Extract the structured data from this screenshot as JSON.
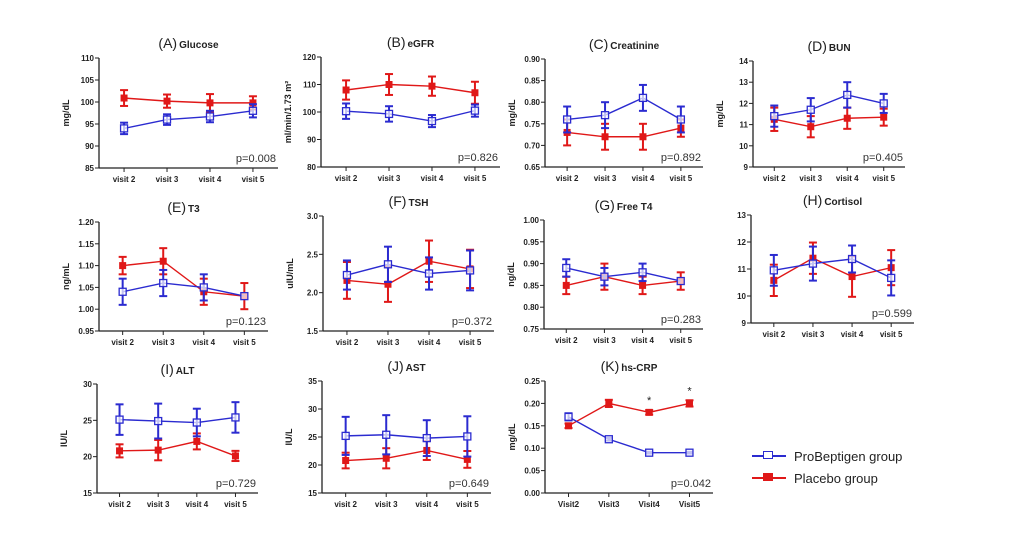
{
  "colors": {
    "probeptigen": "#2b2bd0",
    "placebo": "#e01818",
    "axis": "#222222"
  },
  "legend": [
    {
      "label": "ProBeptigen group",
      "series": "probeptigen",
      "marker": "open-square"
    },
    {
      "label": "Placebo group",
      "series": "placebo",
      "marker": "filled-square"
    }
  ],
  "chart_data": [
    {
      "id": "A",
      "type": "line",
      "letter": "(A)",
      "title": "Glucose",
      "ylabel": "mg/dL",
      "ylim": [
        85,
        110
      ],
      "yticks": [
        85,
        90,
        95,
        100,
        105,
        110
      ],
      "yticklabels": [
        "85",
        "90",
        "95",
        "100",
        "105",
        "110"
      ],
      "categories": [
        "visit 2",
        "visit 3",
        "visit 4",
        "visit 5"
      ],
      "pvalue": "p=0.008",
      "series": [
        {
          "name": "ProBeptigen group",
          "key": "probeptigen",
          "values": [
            94,
            96,
            96.7,
            98
          ],
          "err": [
            1.3,
            1.2,
            1.3,
            1.5
          ]
        },
        {
          "name": "Placebo group",
          "key": "placebo",
          "values": [
            100.9,
            100.2,
            99.8,
            99.8
          ],
          "err": [
            1.8,
            1.5,
            2,
            1.5
          ]
        }
      ]
    },
    {
      "id": "B",
      "type": "line",
      "letter": "(B)",
      "title": "eGFR",
      "ylabel": "ml/min/1.73 m²",
      "ylim": [
        80,
        120
      ],
      "yticks": [
        80,
        90,
        100,
        110,
        120
      ],
      "yticklabels": [
        "80",
        "90",
        "100",
        "110",
        "120"
      ],
      "categories": [
        "visit 2",
        "visit 3",
        "visit 4",
        "visit 5"
      ],
      "pvalue": "p=0.826",
      "series": [
        {
          "name": "ProBeptigen group",
          "key": "probeptigen",
          "values": [
            100.3,
            99.3,
            96.7,
            100.5
          ],
          "err": [
            2.8,
            2.8,
            2.2,
            2.2
          ]
        },
        {
          "name": "Placebo group",
          "key": "placebo",
          "values": [
            108,
            110,
            109.4,
            107
          ],
          "err": [
            3.5,
            3.8,
            3.5,
            4
          ]
        }
      ]
    },
    {
      "id": "C",
      "type": "line",
      "letter": "(C)",
      "title": "Creatinine",
      "ylabel": "mg/dL",
      "ylim": [
        0.65,
        0.9
      ],
      "yticks": [
        0.65,
        0.7,
        0.75,
        0.8,
        0.85,
        0.9
      ],
      "yticklabels": [
        "0.65",
        "0.70",
        "0.75",
        "0.80",
        "0.85",
        "0.90"
      ],
      "categories": [
        "visit 2",
        "visit 3",
        "visit 4",
        "visit 5"
      ],
      "pvalue": "p=0.892",
      "series": [
        {
          "name": "ProBeptigen group",
          "key": "probeptigen",
          "values": [
            0.76,
            0.77,
            0.81,
            0.76
          ],
          "err": [
            0.03,
            0.03,
            0.03,
            0.03
          ]
        },
        {
          "name": "Placebo group",
          "key": "placebo",
          "values": [
            0.73,
            0.72,
            0.72,
            0.74
          ],
          "err": [
            0.03,
            0.03,
            0.03,
            0.02
          ]
        }
      ]
    },
    {
      "id": "D",
      "type": "line",
      "letter": "(D)",
      "title": "BUN",
      "ylabel": "mg/dL",
      "ylim": [
        9,
        14
      ],
      "yticks": [
        9,
        10,
        11,
        12,
        13,
        14
      ],
      "yticklabels": [
        "9",
        "10",
        "11",
        "12",
        "13",
        "14"
      ],
      "categories": [
        "visit 2",
        "visit 3",
        "visit 4",
        "visit 5"
      ],
      "pvalue": "p=0.405",
      "series": [
        {
          "name": "ProBeptigen group",
          "key": "probeptigen",
          "values": [
            11.4,
            11.7,
            12.4,
            12
          ],
          "err": [
            0.5,
            0.55,
            0.6,
            0.45
          ]
        },
        {
          "name": "Placebo group",
          "key": "placebo",
          "values": [
            11.25,
            10.9,
            11.3,
            11.35
          ],
          "err": [
            0.55,
            0.5,
            0.5,
            0.4
          ]
        }
      ]
    },
    {
      "id": "E",
      "type": "line",
      "letter": "(E)",
      "title": "T3",
      "ylabel": "ng/mL",
      "ylim": [
        0.95,
        1.2
      ],
      "yticks": [
        0.95,
        1.0,
        1.05,
        1.1,
        1.15,
        1.2
      ],
      "yticklabels": [
        "0.95",
        "1.00",
        "1.05",
        "1.10",
        "1.15",
        "1.20"
      ],
      "categories": [
        "visit 2",
        "visit 3",
        "visit 4",
        "visit 5"
      ],
      "pvalue": "p=0.123",
      "series": [
        {
          "name": "ProBeptigen group",
          "key": "probeptigen",
          "values": [
            1.04,
            1.06,
            1.05,
            1.03
          ],
          "err": [
            0.03,
            0.03,
            0.03,
            0.0
          ]
        },
        {
          "name": "Placebo group",
          "key": "placebo",
          "values": [
            1.1,
            1.11,
            1.04,
            1.03
          ],
          "err": [
            0.02,
            0.03,
            0.03,
            0.03
          ]
        }
      ]
    },
    {
      "id": "F",
      "type": "line",
      "letter": "(F)",
      "title": "TSH",
      "ylabel": "uIU/mL",
      "ylim": [
        1.5,
        3.0
      ],
      "yticks": [
        1.5,
        2.0,
        2.5,
        3.0
      ],
      "yticklabels": [
        "1.5",
        "2.0",
        "2.5",
        "3.0"
      ],
      "categories": [
        "visit 2",
        "visit 3",
        "visit 4",
        "visit 5"
      ],
      "pvalue": "p=0.372",
      "series": [
        {
          "name": "ProBeptigen group",
          "key": "probeptigen",
          "values": [
            2.23,
            2.37,
            2.25,
            2.29
          ],
          "err": [
            0.19,
            0.23,
            0.21,
            0.26
          ]
        },
        {
          "name": "Placebo group",
          "key": "placebo",
          "values": [
            2.16,
            2.11,
            2.41,
            2.31
          ],
          "err": [
            0.24,
            0.23,
            0.27,
            0.25
          ]
        }
      ]
    },
    {
      "id": "G",
      "type": "line",
      "letter": "(G)",
      "title": "Free T4",
      "ylabel": "ng/dL",
      "ylim": [
        0.75,
        1.0
      ],
      "yticks": [
        0.75,
        0.8,
        0.85,
        0.9,
        0.95,
        1.0
      ],
      "yticklabels": [
        "0.75",
        "0.80",
        "0.85",
        "0.90",
        "0.95",
        "1.00"
      ],
      "categories": [
        "visit 2",
        "visit 3",
        "visit 4",
        "visit 5"
      ],
      "pvalue": "p=0.283",
      "series": [
        {
          "name": "ProBeptigen group",
          "key": "probeptigen",
          "values": [
            0.89,
            0.87,
            0.88,
            0.86
          ],
          "err": [
            0.02,
            0.02,
            0.02,
            0.0
          ]
        },
        {
          "name": "Placebo group",
          "key": "placebo",
          "values": [
            0.85,
            0.87,
            0.85,
            0.86
          ],
          "err": [
            0.02,
            0.03,
            0.02,
            0.02
          ]
        }
      ]
    },
    {
      "id": "H",
      "type": "line",
      "letter": "(H)",
      "title": "Cortisol",
      "ylabel": "",
      "ylim": [
        9,
        13
      ],
      "yticks": [
        9,
        10,
        11,
        12,
        13
      ],
      "yticklabels": [
        "9",
        "10",
        "11",
        "12",
        "13"
      ],
      "categories": [
        "visit 2",
        "visit 3",
        "visit 4",
        "visit 5"
      ],
      "pvalue": "p=0.599",
      "series": [
        {
          "name": "ProBeptigen group",
          "key": "probeptigen",
          "values": [
            10.95,
            11.2,
            11.37,
            10.67
          ],
          "err": [
            0.57,
            0.63,
            0.5,
            0.65
          ]
        },
        {
          "name": "Placebo group",
          "key": "placebo",
          "values": [
            10.58,
            11.4,
            10.72,
            11.05
          ],
          "err": [
            0.58,
            0.58,
            0.75,
            0.65
          ]
        }
      ]
    },
    {
      "id": "I",
      "type": "line",
      "letter": "(I)",
      "title": "ALT",
      "ylabel": "IU/L",
      "ylim": [
        15,
        30
      ],
      "yticks": [
        15,
        20,
        25,
        30
      ],
      "yticklabels": [
        "15",
        "20",
        "25",
        "30"
      ],
      "categories": [
        "visit 2",
        "visit 3",
        "visit 4",
        "visit 5"
      ],
      "pvalue": "p=0.729",
      "series": [
        {
          "name": "ProBeptigen group",
          "key": "probeptigen",
          "values": [
            25.1,
            24.9,
            24.7,
            25.4
          ],
          "err": [
            2.1,
            2.4,
            1.9,
            2.1
          ]
        },
        {
          "name": "Placebo group",
          "key": "placebo",
          "values": [
            20.8,
            20.9,
            22.1,
            20.1
          ],
          "err": [
            0.9,
            1.4,
            1.1,
            0.7
          ]
        }
      ]
    },
    {
      "id": "J",
      "type": "line",
      "letter": "(J)",
      "title": "AST",
      "ylabel": "IU/L",
      "ylim": [
        15,
        35
      ],
      "yticks": [
        15,
        20,
        25,
        30,
        35
      ],
      "yticklabels": [
        "15",
        "20",
        "25",
        "30",
        "35"
      ],
      "categories": [
        "visit 2",
        "visit 3",
        "visit 4",
        "visit 5"
      ],
      "pvalue": "p=0.649",
      "series": [
        {
          "name": "ProBeptigen group",
          "key": "probeptigen",
          "values": [
            25.2,
            25.4,
            24.8,
            25.1
          ],
          "err": [
            3.4,
            3.5,
            3.2,
            3.6
          ]
        },
        {
          "name": "Placebo group",
          "key": "placebo",
          "values": [
            20.8,
            21.2,
            22.6,
            21.0
          ],
          "err": [
            1.4,
            1.8,
            1.7,
            1.5
          ]
        }
      ]
    },
    {
      "id": "K",
      "type": "line",
      "letter": "(K)",
      "title": "hs-CRP",
      "ylabel": "mg/dL",
      "ylim": [
        0,
        0.25
      ],
      "yticks": [
        0,
        0.05,
        0.1,
        0.15,
        0.2,
        0.25
      ],
      "yticklabels": [
        "0.00",
        "0.05",
        "0.10",
        "0.15",
        "0.20",
        "0.25"
      ],
      "categories": [
        "Visit2",
        "Visit3",
        "Visit4",
        "Visit5"
      ],
      "pvalue": "p=0.042",
      "annotations": [
        {
          "category": "Visit4",
          "text": "*"
        },
        {
          "category": "Visit5",
          "text": "*"
        }
      ],
      "series": [
        {
          "name": "ProBeptigen group",
          "key": "probeptigen",
          "values": [
            0.17,
            0.12,
            0.09,
            0.09
          ],
          "err": [
            0.008,
            0.003,
            0.002,
            0.002
          ]
        },
        {
          "name": "Placebo group",
          "key": "placebo",
          "values": [
            0.15,
            0.2,
            0.18,
            0.2
          ],
          "err": [
            0.005,
            0.008,
            0.005,
            0.007
          ]
        }
      ]
    }
  ]
}
